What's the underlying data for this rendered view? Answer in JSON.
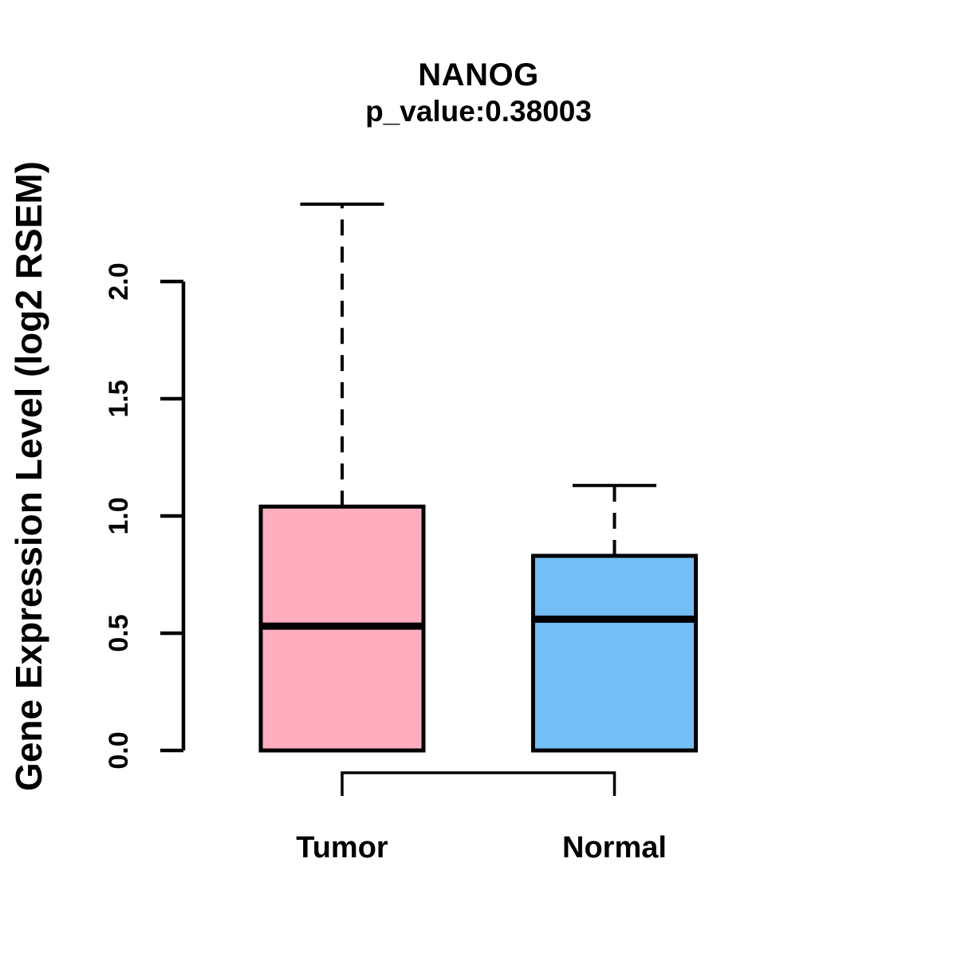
{
  "header": {
    "title": "NANOG",
    "subtitle": "p_value:0.38003"
  },
  "chart_data": {
    "type": "boxplot",
    "title": "NANOG",
    "subtitle": "p_value:0.38003",
    "xlabel": "",
    "ylabel": "Gene Expression Level (log2 RSEM)",
    "categories": [
      "Tumor",
      "Normal"
    ],
    "series": [
      {
        "name": "Tumor",
        "color": "#FFAEC0",
        "whisker_low": 0.0,
        "q1": 0.0,
        "median": 0.53,
        "q3": 1.04,
        "whisker_high": 2.33
      },
      {
        "name": "Normal",
        "color": "#74BEF6",
        "whisker_low": 0.0,
        "q1": 0.0,
        "median": 0.56,
        "q3": 0.83,
        "whisker_high": 1.13
      }
    ],
    "yticks": [
      "0.0",
      "0.5",
      "1.0",
      "1.5",
      "2.0"
    ],
    "ylim": [
      0.0,
      2.33
    ],
    "grid": false,
    "legend": "none",
    "annotations": {
      "comparison_bracket_between": [
        "Tumor",
        "Normal"
      ]
    },
    "axis_color": "#000000",
    "text_color": "#000000",
    "background_color": "#FFFFFF"
  }
}
